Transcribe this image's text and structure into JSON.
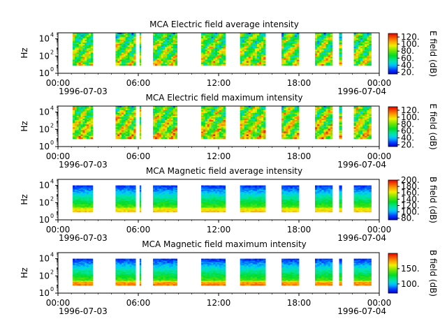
{
  "chart_data": [
    {
      "type": "heatmap",
      "title": "MCA  Electric field average intensity",
      "ylabel": "Hz",
      "y_scale": "log",
      "y_ticks": [
        {
          "base": "10",
          "exp": "0",
          "value": 1
        },
        {
          "base": "10",
          "exp": "2",
          "value": 100
        },
        {
          "base": "10",
          "exp": "4",
          "value": 10000
        }
      ],
      "x_tick_labels": [
        "00:00",
        "06:00",
        "12:00",
        "18:00",
        "00:00"
      ],
      "x_date_labels": [
        "1996-07-03",
        "1996-07-04"
      ],
      "colorbar": {
        "label": "E field (dB)",
        "range": [
          15,
          130
        ],
        "ticks": [
          "20.",
          "40.",
          "60.",
          "80.",
          "100.",
          "120."
        ],
        "tick_values": [
          20,
          40,
          60,
          80,
          100,
          120
        ]
      },
      "colormap": "rainbow-bright",
      "data_intervals_hours": [
        [
          1.1,
          2.6
        ],
        [
          4.3,
          5.8
        ],
        [
          6.1,
          6.2
        ],
        [
          7.1,
          8.9
        ],
        [
          10.7,
          12.5
        ],
        [
          13.6,
          15.5
        ],
        [
          16.7,
          18.0
        ],
        [
          19.2,
          20.5
        ],
        [
          21.0,
          21.2
        ],
        [
          22.1,
          23.4
        ]
      ],
      "freq_range_hz": [
        8,
        80000
      ]
    },
    {
      "type": "heatmap",
      "title": "MCA  Electric field maximum intensity",
      "ylabel": "Hz",
      "y_scale": "log",
      "y_ticks": [
        {
          "base": "10",
          "exp": "0",
          "value": 1
        },
        {
          "base": "10",
          "exp": "2",
          "value": 100
        },
        {
          "base": "10",
          "exp": "4",
          "value": 10000
        }
      ],
      "x_tick_labels": [
        "00:00",
        "06:00",
        "12:00",
        "18:00",
        "00:00"
      ],
      "x_date_labels": [
        "1996-07-03",
        "1996-07-04"
      ],
      "colorbar": {
        "label": "E field (dB)",
        "range": [
          15,
          130
        ],
        "ticks": [
          "20.",
          "40.",
          "60.",
          "80.",
          "100.",
          "120."
        ],
        "tick_values": [
          20,
          40,
          60,
          80,
          100,
          120
        ]
      },
      "colormap": "rainbow-bright",
      "data_intervals_hours": [
        [
          1.1,
          2.6
        ],
        [
          4.3,
          5.8
        ],
        [
          6.1,
          6.2
        ],
        [
          7.1,
          8.9
        ],
        [
          10.7,
          12.5
        ],
        [
          13.6,
          15.5
        ],
        [
          16.7,
          18.0
        ],
        [
          19.2,
          20.5
        ],
        [
          21.0,
          21.2
        ],
        [
          22.1,
          23.4
        ]
      ],
      "freq_range_hz": [
        8,
        80000
      ]
    },
    {
      "type": "heatmap",
      "title": "MCA  Magnetic field average intensity",
      "ylabel": "Hz",
      "y_scale": "log",
      "y_ticks": [
        {
          "base": "10",
          "exp": "0",
          "value": 1
        },
        {
          "base": "10",
          "exp": "2",
          "value": 100
        },
        {
          "base": "10",
          "exp": "4",
          "value": 10000
        }
      ],
      "x_tick_labels": [
        "00:00",
        "06:00",
        "12:00",
        "18:00",
        "00:00"
      ],
      "x_date_labels": [
        "1996-07-03",
        "1996-07-04"
      ],
      "colorbar": {
        "label": "B field (dB)",
        "range": [
          75,
          200
        ],
        "ticks": [
          "80.",
          "100.",
          "120.",
          "140.",
          "160.",
          "180.",
          "200."
        ],
        "tick_values": [
          80,
          100,
          120,
          140,
          160,
          180,
          200
        ]
      },
      "colormap": "rainbow-bright",
      "data_intervals_hours": [
        [
          1.1,
          2.6
        ],
        [
          4.3,
          5.8
        ],
        [
          6.1,
          6.2
        ],
        [
          7.1,
          8.9
        ],
        [
          10.7,
          12.5
        ],
        [
          13.6,
          15.5
        ],
        [
          16.7,
          18.0
        ],
        [
          19.2,
          20.5
        ],
        [
          21.0,
          21.2
        ],
        [
          22.1,
          23.4
        ]
      ],
      "freq_range_hz": [
        8,
        10000
      ]
    },
    {
      "type": "heatmap",
      "title": "MCA  Magnetic field maximum intensity",
      "ylabel": "Hz",
      "y_scale": "log",
      "y_ticks": [
        {
          "base": "10",
          "exp": "0",
          "value": 1
        },
        {
          "base": "10",
          "exp": "2",
          "value": 100
        },
        {
          "base": "10",
          "exp": "4",
          "value": 10000
        }
      ],
      "x_tick_labels": [
        "00:00",
        "06:00",
        "12:00",
        "18:00",
        "00:00"
      ],
      "x_date_labels": [
        "1996-07-03",
        "1996-07-04"
      ],
      "colorbar": {
        "label": "B field (dB)",
        "range": [
          70,
          200
        ],
        "ticks": [
          "100.",
          "150."
        ],
        "tick_values": [
          100,
          150
        ]
      },
      "colormap": "rainbow-bright",
      "data_intervals_hours": [
        [
          1.1,
          2.6
        ],
        [
          4.3,
          5.8
        ],
        [
          6.1,
          6.2
        ],
        [
          7.1,
          8.9
        ],
        [
          10.7,
          12.5
        ],
        [
          13.6,
          15.5
        ],
        [
          16.7,
          18.0
        ],
        [
          19.2,
          20.5
        ],
        [
          21.0,
          21.2
        ],
        [
          22.1,
          23.4
        ]
      ],
      "freq_range_hz": [
        8,
        10000
      ]
    }
  ]
}
